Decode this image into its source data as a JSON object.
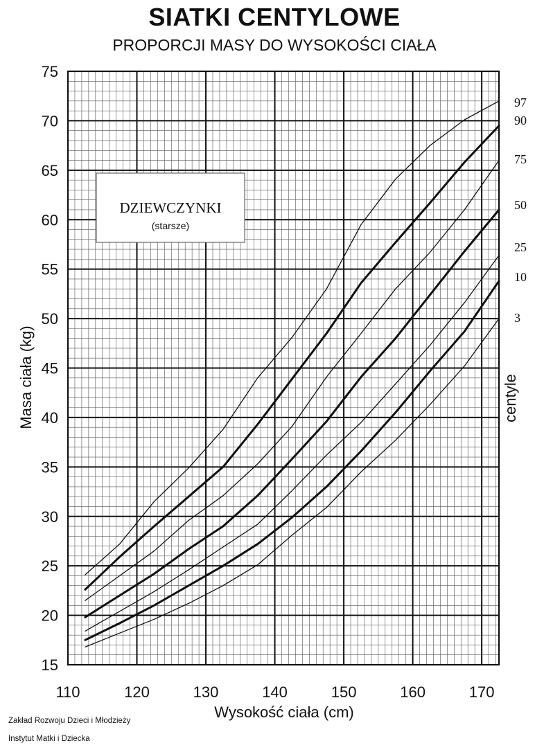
{
  "footer": {
    "line1": "Zakład Rozwoju Dzieci i Młodzieży",
    "line2": "Instytut  Matki i Dziecka"
  },
  "chart_data": {
    "type": "line",
    "title": "SIATKI CENTYLOWE",
    "subtitle": "PROPORCJI MASY DO WYSOKOŚCI CIAŁA",
    "xlabel": "Wysokość ciała (cm)",
    "ylabel": "Masa ciała (kg)",
    "xlim": [
      110,
      172.5
    ],
    "ylim": [
      15,
      75
    ],
    "xticks": [
      110,
      120,
      130,
      140,
      150,
      160,
      170
    ],
    "yticks": [
      15,
      20,
      25,
      30,
      35,
      40,
      45,
      50,
      55,
      60,
      65,
      70,
      75
    ],
    "grid": true,
    "inset_label": {
      "title": "DZIEWCZYNKI",
      "subtitle": "(starsze)"
    },
    "right_axis_label": "centyle",
    "series": [
      {
        "name": "97",
        "bold": false,
        "x": [
          112.5,
          117.5,
          122.5,
          127.5,
          132.5,
          137.5,
          142.5,
          147.5,
          152.5,
          157.5,
          162.5,
          167.5,
          172.5
        ],
        "y": [
          24.1,
          27.2,
          31.5,
          34.9,
          38.8,
          44.0,
          48.1,
          53.0,
          59.5,
          64.1,
          67.5,
          70.1,
          72.0
        ]
      },
      {
        "name": "90",
        "bold": true,
        "x": [
          112.5,
          117.5,
          122.5,
          127.5,
          132.5,
          137.5,
          142.5,
          147.5,
          152.5,
          157.5,
          162.5,
          167.5,
          172.5
        ],
        "y": [
          22.6,
          25.9,
          29.0,
          32.0,
          35.0,
          39.3,
          43.9,
          48.5,
          53.6,
          57.7,
          61.7,
          65.8,
          69.5
        ]
      },
      {
        "name": "75",
        "bold": false,
        "x": [
          112.5,
          117.5,
          122.5,
          127.5,
          132.5,
          137.5,
          142.5,
          147.5,
          152.5,
          157.5,
          162.5,
          167.5,
          172.5
        ],
        "y": [
          21.5,
          24.0,
          26.5,
          29.6,
          32.1,
          35.3,
          39.1,
          44.1,
          48.5,
          53.0,
          56.7,
          61.0,
          66.0
        ]
      },
      {
        "name": "50",
        "bold": true,
        "x": [
          112.5,
          117.5,
          122.5,
          127.5,
          132.5,
          137.5,
          142.5,
          147.5,
          152.5,
          157.5,
          162.5,
          167.5,
          172.5
        ],
        "y": [
          19.8,
          22.0,
          24.2,
          26.7,
          29.0,
          32.1,
          35.8,
          39.6,
          44.1,
          48.0,
          52.4,
          56.8,
          61.0
        ]
      },
      {
        "name": "25",
        "bold": false,
        "x": [
          112.5,
          117.5,
          122.5,
          127.5,
          132.5,
          137.5,
          142.5,
          147.5,
          152.5,
          157.5,
          162.5,
          167.5,
          172.5
        ],
        "y": [
          18.4,
          20.4,
          22.4,
          24.6,
          26.9,
          29.2,
          32.6,
          36.2,
          39.5,
          43.4,
          47.3,
          51.6,
          56.4
        ]
      },
      {
        "name": "10",
        "bold": true,
        "x": [
          112.5,
          117.5,
          122.5,
          127.5,
          132.5,
          137.5,
          142.5,
          147.5,
          152.5,
          157.5,
          162.5,
          167.5,
          172.5
        ],
        "y": [
          17.5,
          19.2,
          21.0,
          23.0,
          25.0,
          27.2,
          29.9,
          33.0,
          36.6,
          40.5,
          44.7,
          48.7,
          53.8
        ]
      },
      {
        "name": "3",
        "bold": false,
        "x": [
          112.5,
          117.5,
          122.5,
          127.5,
          132.5,
          137.5,
          142.5,
          147.5,
          152.5,
          157.5,
          162.5,
          167.5,
          172.5
        ],
        "y": [
          16.8,
          18.2,
          19.6,
          21.2,
          23.0,
          25.1,
          28.1,
          30.9,
          34.5,
          37.7,
          41.3,
          45.2,
          50.0
        ]
      }
    ]
  }
}
